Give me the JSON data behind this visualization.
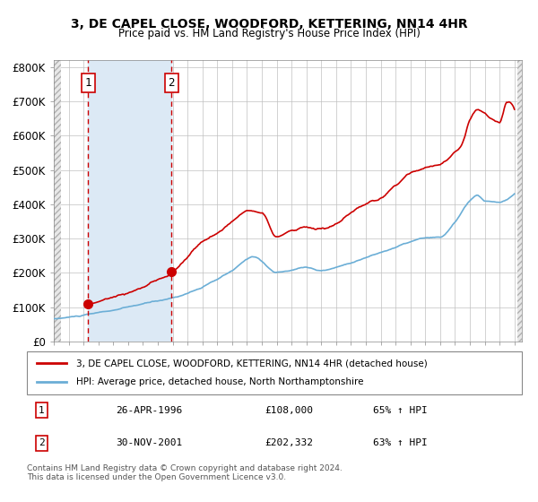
{
  "title": "3, DE CAPEL CLOSE, WOODFORD, KETTERING, NN14 4HR",
  "subtitle": "Price paid vs. HM Land Registry's House Price Index (HPI)",
  "legend_line1": "3, DE CAPEL CLOSE, WOODFORD, KETTERING, NN14 4HR (detached house)",
  "legend_line2": "HPI: Average price, detached house, North Northamptonshire",
  "footnote": "Contains HM Land Registry data © Crown copyright and database right 2024.\nThis data is licensed under the Open Government Licence v3.0.",
  "transaction1": {
    "label": "1",
    "date": "26-APR-1996",
    "price": 108000,
    "pct": "65% ↑ HPI",
    "year": 1996.32
  },
  "transaction2": {
    "label": "2",
    "date": "30-NOV-2001",
    "price": 202332,
    "pct": "63% ↑ HPI",
    "year": 2001.92
  },
  "hpi_color": "#6baed6",
  "price_color": "#cc0000",
  "dot_color": "#cc0000",
  "shade_color": "#dce9f5",
  "hatch_color": "#c0c0c0",
  "grid_color": "#c0c0c0",
  "background_color": "#ffffff",
  "ylim": [
    0,
    820000
  ],
  "xlim_start": 1994.0,
  "xlim_end": 2025.5,
  "yticks": [
    0,
    100000,
    200000,
    300000,
    400000,
    500000,
    600000,
    700000,
    800000
  ],
  "ytick_labels": [
    "£0",
    "£100K",
    "£200K",
    "£300K",
    "£400K",
    "£500K",
    "£600K",
    "£700K",
    "£800K"
  ],
  "xticks": [
    1994,
    1995,
    1996,
    1997,
    1998,
    1999,
    2000,
    2001,
    2002,
    2003,
    2004,
    2005,
    2006,
    2007,
    2008,
    2009,
    2010,
    2011,
    2012,
    2013,
    2014,
    2015,
    2016,
    2017,
    2018,
    2019,
    2020,
    2021,
    2022,
    2023,
    2024,
    2025
  ]
}
